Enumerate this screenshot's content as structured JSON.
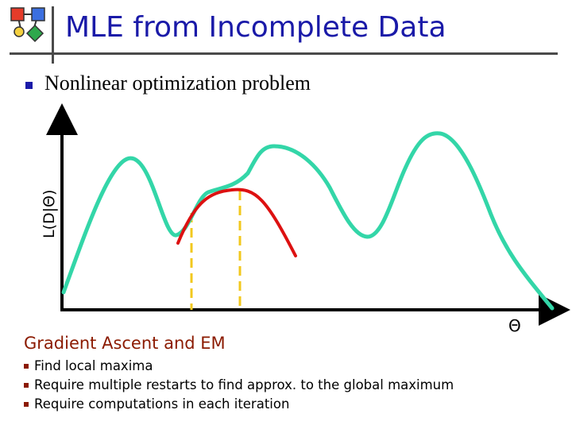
{
  "slide": {
    "title": "MLE from Incomplete Data",
    "bullet": "Nonlinear optimization problem",
    "subheading": "Gradient Ascent and EM",
    "items": [
      "Find local maxima",
      "Require multiple restarts to find approx. to the global maximum",
      "Require computations in each iteration"
    ]
  },
  "figure": {
    "y_axis_label": "L(D|Θ)",
    "x_axis_label": "Θ",
    "colors": {
      "likelihood_curve": "#33d6a8",
      "local_approximation": "#dd1111",
      "guide_lines": "#f2c81e",
      "axis": "#000000",
      "title": "#1a1aa8",
      "subheading": "#8b1a00"
    }
  },
  "logo": {
    "icon": "flowchart-logo-icon"
  }
}
